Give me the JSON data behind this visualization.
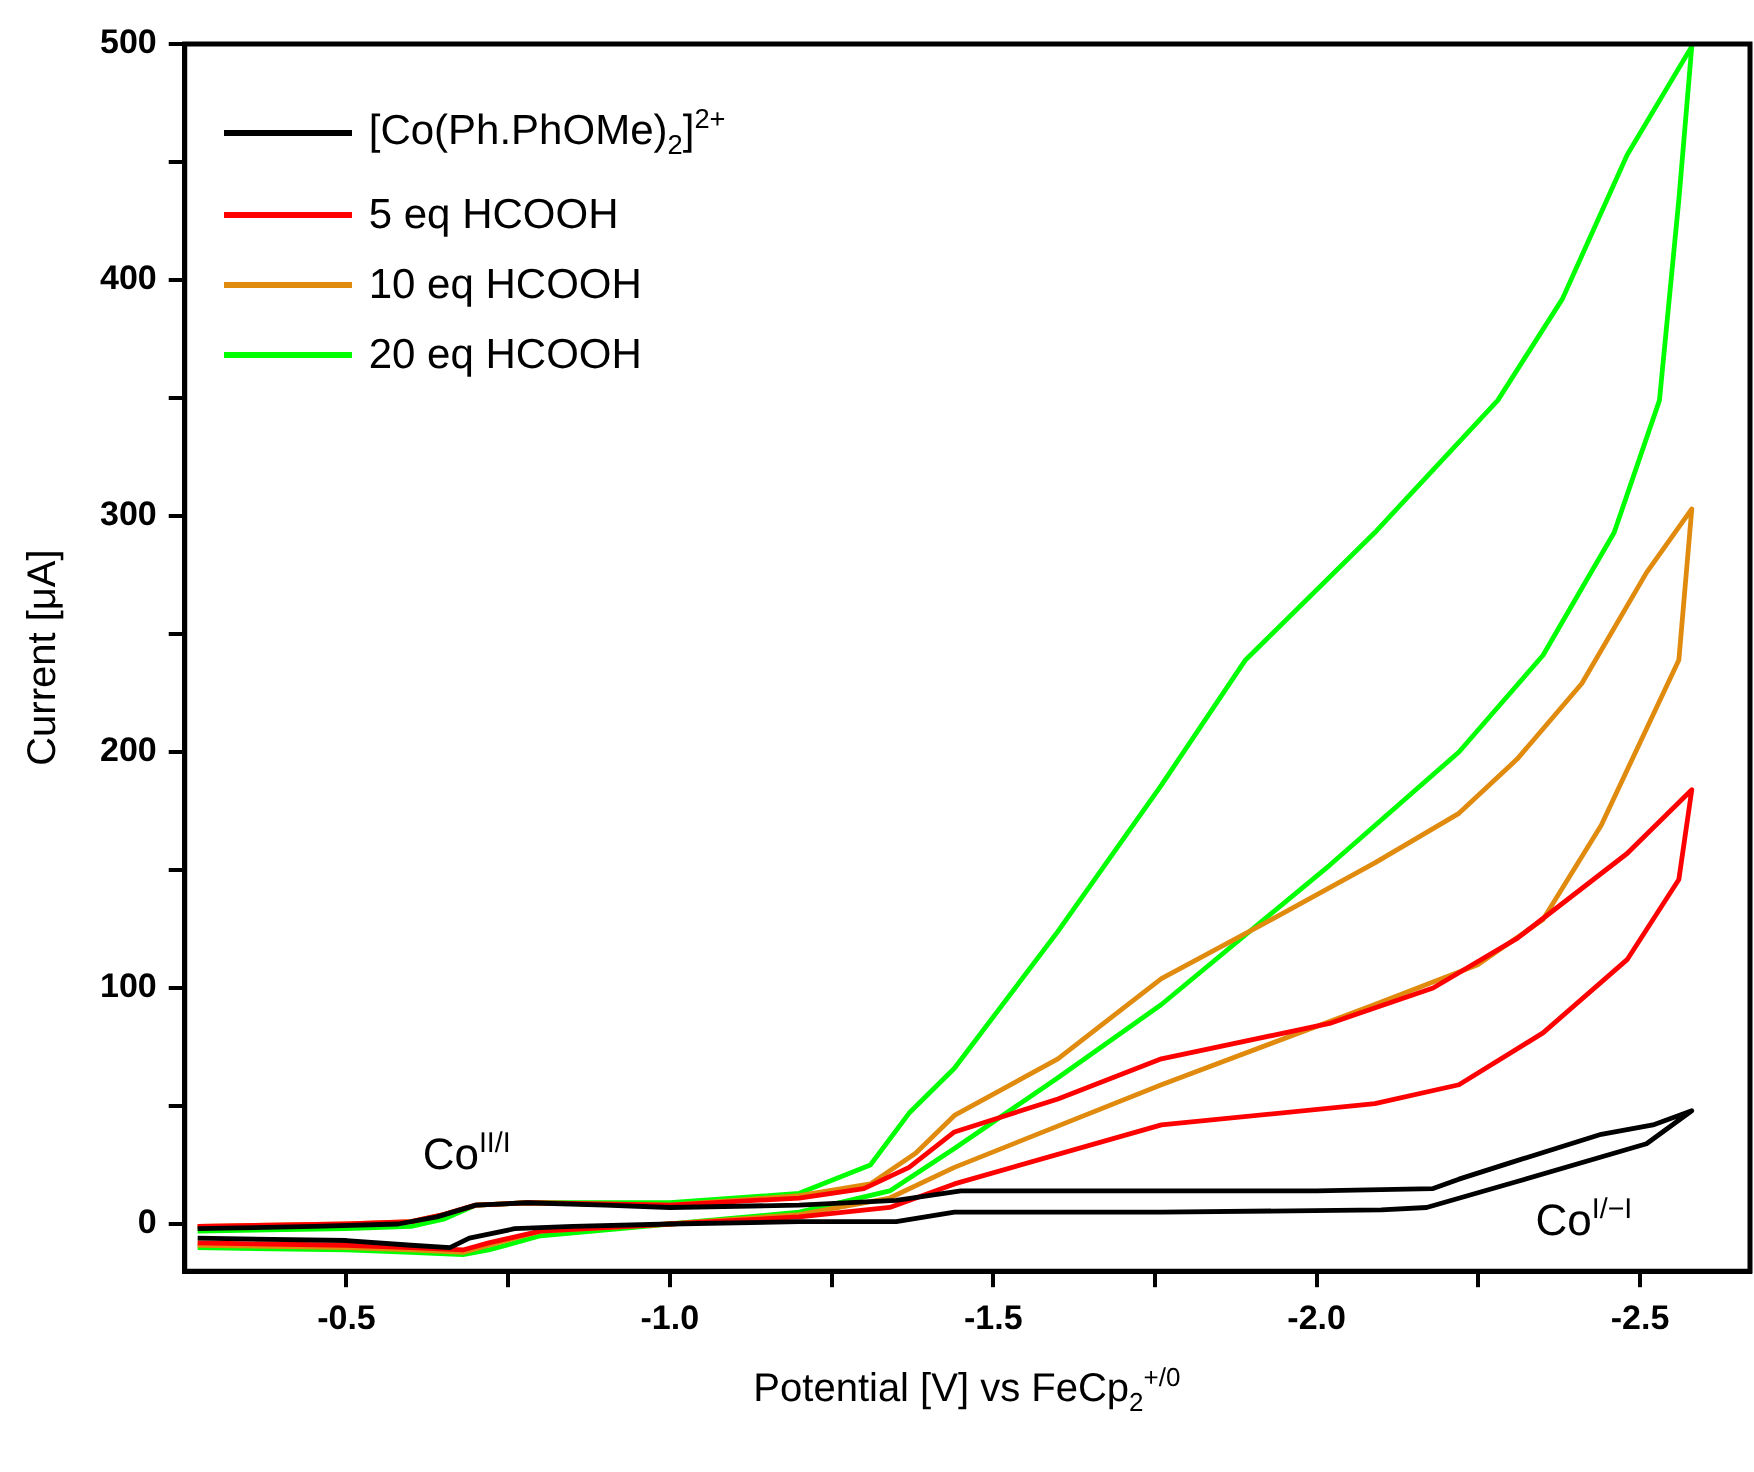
{
  "chart_data": {
    "type": "line",
    "xlabel": "Potential [V] vs FeCp$_{2}$$^{+/0}$",
    "ylabel": "Current [μA]",
    "xlim": [
      -0.25,
      -2.67
    ],
    "ylim": [
      -20,
      500
    ],
    "xticks": [
      -0.5,
      {
        "value": -0.75,
        "label": null
      },
      {
        "value": -1,
        "label": "-1.0"
      },
      {
        "value": -1.25,
        "label": null
      },
      -1.5,
      {
        "value": -1.75,
        "label": null
      },
      {
        "value": -2,
        "label": "-2.0"
      },
      {
        "value": -2.25,
        "label": null
      },
      -2.5
    ],
    "yticks": [
      0,
      {
        "value": 50,
        "label": null
      },
      100,
      {
        "value": 150,
        "label": null
      },
      200,
      {
        "value": 250,
        "label": null
      },
      300,
      {
        "value": 350,
        "label": null
      },
      400,
      {
        "value": 450,
        "label": null
      },
      500
    ],
    "grid": false,
    "legend": "top left",
    "line_style": "solid",
    "annotations": [
      "Co$^{II/I}$",
      "Co$^{I/−I}$"
    ],
    "series": [
      {
        "name": "[Co(Ph.PhOMe)$_{2}$]$^{2+}$",
        "color": "#000000",
        "x": [
          -0.27,
          -0.45,
          -0.58,
          -0.64,
          -0.7,
          -0.78,
          -0.9,
          -1.0,
          -1.2,
          -1.35,
          -1.45,
          -1.6,
          -1.8,
          -2.0,
          -2.18,
          -2.22,
          -2.3,
          -2.44,
          -2.52,
          -2.58,
          -2.51,
          -2.31,
          -2.17,
          -2.1,
          -1.76,
          -1.44,
          -1.35,
          -1.2,
          -1.0,
          -0.85,
          -0.76,
          -0.69,
          -0.66,
          -0.6,
          -0.5,
          -0.27
        ],
        "values": [
          -2,
          -1,
          0,
          3,
          8,
          9,
          8,
          7,
          8,
          10,
          14,
          14,
          14,
          14,
          15,
          19,
          26,
          38,
          42,
          48,
          34,
          18,
          7,
          6,
          5,
          5,
          1,
          1,
          0,
          -1,
          -2,
          -6,
          -10,
          -9,
          -7,
          -6
        ]
      },
      {
        "name": "5 eq HCOOH",
        "color": "#ff0000",
        "x": [
          -0.27,
          -0.5,
          -0.6,
          -0.65,
          -0.7,
          -0.78,
          -1.0,
          -1.2,
          -1.3,
          -1.37,
          -1.44,
          -1.6,
          -1.76,
          -2.02,
          -2.18,
          -2.31,
          -2.48,
          -2.58,
          -2.56,
          -2.48,
          -2.35,
          -2.22,
          -2.09,
          -1.76,
          -1.44,
          -1.34,
          -1.2,
          -1.0,
          -0.8,
          -0.72,
          -0.68,
          -0.6,
          -0.5,
          -0.27
        ],
        "values": [
          -1,
          0,
          1,
          4,
          8,
          9,
          8,
          11,
          15,
          24,
          39,
          53,
          70,
          85,
          100,
          121,
          157,
          184,
          146,
          112,
          81,
          59,
          51,
          42,
          17,
          7,
          3,
          0,
          -3,
          -8,
          -11,
          -10,
          -9,
          -8
        ]
      },
      {
        "name": "10 eq HCOOH",
        "color": "#e08a0e",
        "x": [
          -0.27,
          -0.5,
          -0.6,
          -0.65,
          -0.7,
          -0.78,
          -1.0,
          -1.2,
          -1.31,
          -1.38,
          -1.44,
          -1.6,
          -1.76,
          -1.93,
          -2.09,
          -2.22,
          -2.31,
          -2.41,
          -2.51,
          -2.58,
          -2.56,
          -2.44,
          -2.35,
          -2.25,
          -2.09,
          -1.76,
          -1.44,
          -1.34,
          -1.2,
          -1.0,
          -0.8,
          -0.72,
          -0.68,
          -0.6,
          -0.5,
          -0.27
        ],
        "values": [
          -1,
          0,
          1,
          4,
          8,
          9,
          8,
          12,
          17,
          30,
          46,
          70,
          104,
          129,
          153,
          174,
          197,
          229,
          276,
          303,
          239,
          169,
          129,
          110,
          93,
          59,
          24,
          11,
          4,
          0,
          -3,
          -9,
          -12,
          -11,
          -10,
          -9
        ]
      },
      {
        "name": "20 eq HCOOH",
        "color": "#00ff00",
        "x": [
          -0.27,
          -0.5,
          -0.6,
          -0.65,
          -0.7,
          -0.78,
          -1.0,
          -1.2,
          -1.31,
          -1.37,
          -1.44,
          -1.6,
          -1.76,
          -1.89,
          -2.09,
          -2.28,
          -2.38,
          -2.48,
          -2.58,
          -2.56,
          -2.53,
          -2.46,
          -2.35,
          -2.22,
          -2.02,
          -1.76,
          -1.6,
          -1.44,
          -1.34,
          -1.2,
          -1.0,
          -0.8,
          -0.72,
          -0.68,
          -0.6,
          -0.5,
          -0.27
        ],
        "values": [
          -3,
          -2,
          -1,
          2,
          8,
          9,
          9,
          13,
          25,
          47,
          66,
          124,
          186,
          239,
          293,
          349,
          392,
          453,
          499,
          434,
          349,
          293,
          241,
          200,
          152,
          93,
          62,
          32,
          14,
          5,
          0,
          -5,
          -11,
          -13,
          -12,
          -11,
          -10
        ]
      }
    ]
  }
}
